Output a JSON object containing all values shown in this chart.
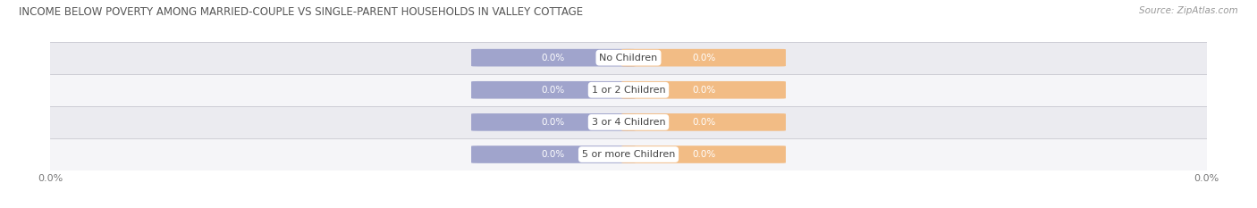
{
  "title": "INCOME BELOW POVERTY AMONG MARRIED-COUPLE VS SINGLE-PARENT HOUSEHOLDS IN VALLEY COTTAGE",
  "source": "Source: ZipAtlas.com",
  "categories": [
    "No Children",
    "1 or 2 Children",
    "3 or 4 Children",
    "5 or more Children"
  ],
  "married_values": [
    0.0,
    0.0,
    0.0,
    0.0
  ],
  "single_values": [
    0.0,
    0.0,
    0.0,
    0.0
  ],
  "married_color": "#a0a4cc",
  "single_color": "#f2bc85",
  "row_bg_even": "#ebebf0",
  "row_bg_odd": "#f5f5f8",
  "title_fontsize": 8.5,
  "source_fontsize": 7.5,
  "label_fontsize": 7.5,
  "category_fontsize": 8,
  "tick_fontsize": 8,
  "legend_fontsize": 8,
  "background_color": "#ffffff",
  "value_text_color": "#ffffff",
  "category_text_color": "#444444",
  "tick_color": "#777777"
}
